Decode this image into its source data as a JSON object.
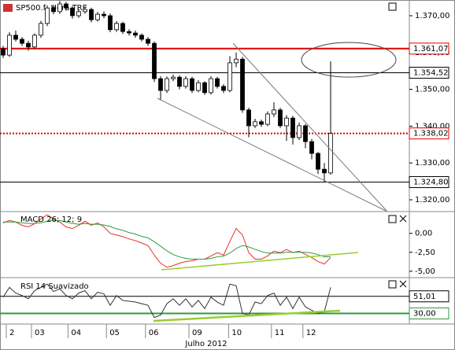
{
  "chart_data": {
    "type": "candlestick",
    "title": "SP500.f, Hora TRE",
    "xlabel": "Julho 2012",
    "xlim": [
      -0.5,
      64.5
    ],
    "xticks": [
      {
        "value": 0.5,
        "label": "2"
      },
      {
        "value": 4.5,
        "label": "03"
      },
      {
        "value": 10.3,
        "label": "04"
      },
      {
        "value": 16.4,
        "label": "05"
      },
      {
        "value": 22.6,
        "label": "06"
      },
      {
        "value": 29.5,
        "label": "09"
      },
      {
        "value": 35.8,
        "label": "10"
      },
      {
        "value": 42.6,
        "label": "11"
      },
      {
        "value": 47.6,
        "label": "12"
      }
    ],
    "ylim": [
      1.31701,
      1.37427
    ],
    "yticks": [
      {
        "value": 1.32,
        "label": "1.320,00"
      },
      {
        "value": 1.33,
        "label": "1.330,00"
      },
      {
        "value": 1.34,
        "label": "1.340,00"
      },
      {
        "value": 1.35,
        "label": "1.350,00"
      },
      {
        "value": 1.36,
        "label": "1.360,00"
      },
      {
        "value": 1.37,
        "label": "1.370,00"
      }
    ],
    "levels": [
      {
        "value": 1.36107,
        "label": "1.361,07",
        "color": "#e00000",
        "dotted": false
      },
      {
        "value": 1.35452,
        "label": "1.354,52",
        "color": "#000000",
        "dotted": false
      },
      {
        "value": 1.33802,
        "label": "1.338,02",
        "color": "#e00000",
        "dotted": true
      },
      {
        "value": 1.3248,
        "label": "1.324,80",
        "color": "#000000",
        "dotted": false
      }
    ],
    "open": [
      1.361,
      1.3593,
      1.3647,
      1.3636,
      1.3625,
      1.3615,
      1.3647,
      1.3679,
      1.3721,
      1.3711,
      1.3732,
      1.3721,
      1.37,
      1.3711,
      1.3717,
      1.3689,
      1.3704,
      1.37,
      1.3662,
      1.3679,
      1.3657,
      1.3653,
      1.3647,
      1.3636,
      1.3625,
      1.3529,
      1.3497,
      1.3529,
      1.3533,
      1.3508,
      1.3529,
      1.3497,
      1.3518,
      1.3491,
      1.3529,
      1.3508,
      1.3497,
      1.3572,
      1.3582,
      1.3444,
      1.3401,
      1.3412,
      1.3405,
      1.3433,
      1.3444,
      1.3401,
      1.3422,
      1.3369,
      1.3401,
      1.3358,
      1.3326,
      1.3283,
      1.3273
    ],
    "high": [
      1.3618,
      1.3655,
      1.366,
      1.3642,
      1.3632,
      1.3652,
      1.3686,
      1.3728,
      1.373,
      1.374,
      1.3738,
      1.3726,
      1.3718,
      1.3724,
      1.3722,
      1.371,
      1.3712,
      1.3706,
      1.3685,
      1.3684,
      1.3663,
      1.366,
      1.3652,
      1.3642,
      1.363,
      1.3536,
      1.3535,
      1.354,
      1.3538,
      1.3536,
      1.3534,
      1.3525,
      1.3522,
      1.3536,
      1.3534,
      1.3514,
      1.359,
      1.36,
      1.3588,
      1.345,
      1.342,
      1.3418,
      1.344,
      1.3465,
      1.345,
      1.343,
      1.3428,
      1.341,
      1.3406,
      1.3365,
      1.333,
      1.33,
      1.3576
    ],
    "low": [
      1.3585,
      1.3588,
      1.363,
      1.3618,
      1.3605,
      1.361,
      1.364,
      1.3672,
      1.3704,
      1.3705,
      1.3714,
      1.3692,
      1.3694,
      1.3705,
      1.3682,
      1.3684,
      1.3693,
      1.3655,
      1.3656,
      1.365,
      1.3646,
      1.364,
      1.363,
      1.3618,
      1.352,
      1.347,
      1.349,
      1.3522,
      1.35,
      1.3502,
      1.349,
      1.3492,
      1.3485,
      1.3486,
      1.3502,
      1.349,
      1.3492,
      1.356,
      1.3436,
      1.337,
      1.3395,
      1.3398,
      1.34,
      1.3425,
      1.3395,
      1.336,
      1.335,
      1.3362,
      1.334,
      1.331,
      1.327,
      1.3248,
      1.3268
    ],
    "close": [
      1.3593,
      1.3647,
      1.3636,
      1.3625,
      1.3615,
      1.3647,
      1.3679,
      1.3721,
      1.3711,
      1.3732,
      1.3721,
      1.37,
      1.3711,
      1.3717,
      1.3689,
      1.3704,
      1.37,
      1.3662,
      1.3679,
      1.3657,
      1.3653,
      1.3647,
      1.3636,
      1.3625,
      1.3529,
      1.3497,
      1.3529,
      1.3533,
      1.3508,
      1.3529,
      1.3497,
      1.3518,
      1.3491,
      1.3529,
      1.3508,
      1.3497,
      1.3572,
      1.3582,
      1.3444,
      1.3401,
      1.3412,
      1.3405,
      1.3433,
      1.3444,
      1.3401,
      1.3422,
      1.3369,
      1.3401,
      1.3358,
      1.3326,
      1.3283,
      1.3273,
      1.338
    ],
    "panels": [
      {
        "type": "line",
        "title": "MACD 26; 12; 9",
        "ylim": [
          -5.74,
          2.77
        ],
        "yticks": [
          {
            "value": 0,
            "label": "0,00"
          },
          {
            "value": -2.5,
            "label": "-2,50"
          },
          {
            "value": -5,
            "label": "-5,00"
          }
        ],
        "levels": [],
        "series": [
          {
            "color": "#e8302a",
            "values": [
              1.38,
              1.7,
              1.49,
              1.06,
              0.85,
              1.28,
              1.91,
              2.45,
              1.91,
              1.49,
              0.85,
              0.64,
              1.06,
              1.6,
              1.06,
              1.38,
              0.85,
              0,
              -0.21,
              -0.43,
              -0.74,
              -0.96,
              -1.28,
              -1.6,
              -2.87,
              -3.94,
              -4.47,
              -4.26,
              -3.94,
              -3.72,
              -3.62,
              -3.4,
              -3.4,
              -2.98,
              -2.55,
              -2.87,
              -1.06,
              0.64,
              -0.21,
              -2.55,
              -3.4,
              -3.4,
              -2.98,
              -2.34,
              -2.55,
              -2.13,
              -2.55,
              -2.34,
              -2.77,
              -3.19,
              -3.72,
              -4.04,
              -3.19
            ]
          },
          {
            "color": "#2e9a3a",
            "values": [
              1.5,
              1.5,
              1.5,
              1.4,
              1.3,
              1.3,
              1.4,
              1.6,
              1.7,
              1.7,
              1.5,
              1.3,
              1.2,
              1.3,
              1.2,
              1.2,
              1.1,
              0.9,
              0.6,
              0.4,
              0.1,
              -0.1,
              -0.4,
              -0.6,
              -1.1,
              -1.7,
              -2.3,
              -2.8,
              -3.1,
              -3.3,
              -3.4,
              -3.4,
              -3.4,
              -3.3,
              -3.1,
              -3.0,
              -2.6,
              -2.0,
              -1.6,
              -1.8,
              -2.1,
              -2.4,
              -2.6,
              -2.6,
              -2.6,
              -2.5,
              -2.5,
              -2.5,
              -2.5,
              -2.6,
              -2.8,
              -3.1,
              -3.1
            ]
          }
        ]
      },
      {
        "type": "line",
        "title": "RSI 14 Suavizado",
        "ylim": [
          17,
          72
        ],
        "yticks": [],
        "levels": [
          {
            "value": 51.01,
            "label": "51,01",
            "color": "#000000"
          },
          {
            "value": 30,
            "label": "30,00",
            "color": "#2e9a3a"
          }
        ],
        "series": [
          {
            "color": "#333333",
            "values": [
              50,
              62,
              55,
              52,
              48,
              58,
              62,
              66,
              57,
              60,
              52,
              48,
              55,
              58,
              48,
              56,
              54,
              40,
              52,
              46,
              45,
              44,
              42,
              40,
              25,
              28,
              42,
              48,
              40,
              48,
              38,
              46,
              36,
              50,
              44,
              40,
              66,
              64,
              30,
              28,
              44,
              42,
              52,
              55,
              40,
              50,
              36,
              50,
              38,
              34,
              30,
              32,
              62
            ]
          }
        ]
      }
    ]
  }
}
